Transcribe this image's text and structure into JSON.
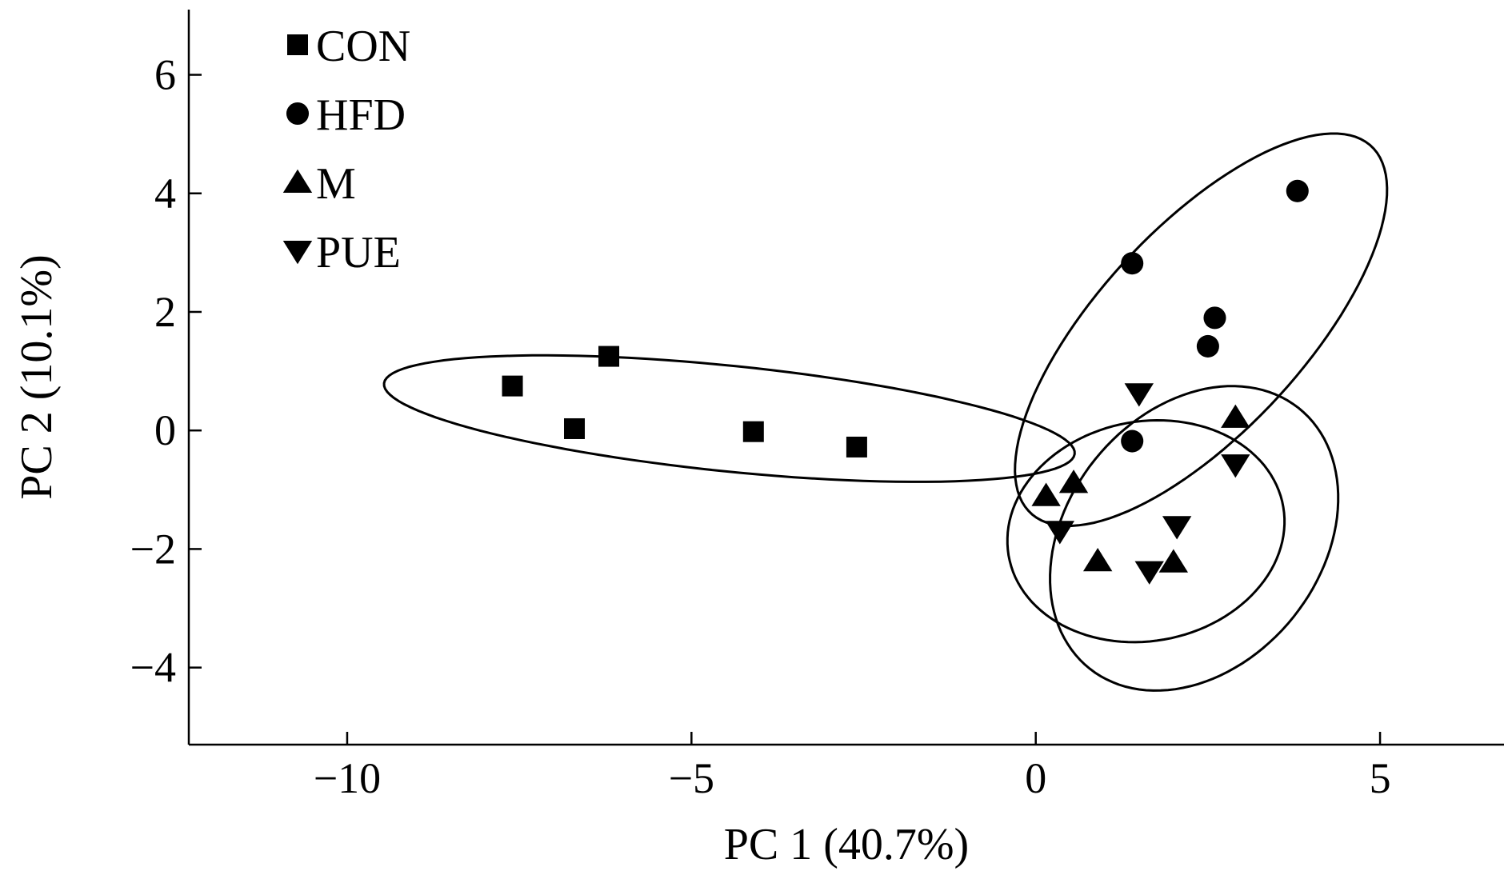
{
  "chart_data": {
    "type": "scatter",
    "xlabel": "PC 1 (40.7%)",
    "ylabel": "PC 2 (10.1%)",
    "xlim": [
      -12.3,
      6.8
    ],
    "ylim": [
      -5.3,
      7.1
    ],
    "xticks": [
      -10,
      -5,
      0,
      5
    ],
    "yticks": [
      -4,
      -2,
      0,
      2,
      4,
      6
    ],
    "xtick_labels": [
      "−10",
      "−5",
      "0",
      "5"
    ],
    "ytick_labels": [
      "−4",
      "−2",
      "0",
      "2",
      "4",
      "6"
    ],
    "grid": false,
    "legend_position": "top-left",
    "series": [
      {
        "name": "CON",
        "marker": "square",
        "points": [
          [
            -7.6,
            0.75
          ],
          [
            -6.7,
            0.03
          ],
          [
            -6.2,
            1.25
          ],
          [
            -4.1,
            -0.02
          ],
          [
            -2.6,
            -0.28
          ]
        ],
        "ellipse": {
          "cx": -4.45,
          "cy": 0.2,
          "rx": 5.05,
          "ry": 0.89,
          "angle_deg": -6.8
        }
      },
      {
        "name": "HFD",
        "marker": "circle",
        "points": [
          [
            1.4,
            2.82
          ],
          [
            2.6,
            1.9
          ],
          [
            2.5,
            1.42
          ],
          [
            3.8,
            4.04
          ],
          [
            1.4,
            -0.18
          ]
        ],
        "ellipse": {
          "cx": 2.4,
          "cy": 1.7,
          "rx": 3.97,
          "ry": 1.58,
          "angle_deg": 53
        }
      },
      {
        "name": "M",
        "marker": "triangle-up",
        "points": [
          [
            0.55,
            -0.88
          ],
          [
            0.15,
            -1.1
          ],
          [
            0.9,
            -2.2
          ],
          [
            2.0,
            -2.22
          ],
          [
            2.9,
            0.22
          ]
        ],
        "ellipse": {
          "cx": 1.6,
          "cy": -1.7,
          "rx": 2.05,
          "ry": 1.83,
          "angle_deg": 25
        }
      },
      {
        "name": "PUE",
        "marker": "triangle-down",
        "points": [
          [
            1.5,
            0.62
          ],
          [
            0.35,
            -1.7
          ],
          [
            1.65,
            -2.38
          ],
          [
            2.05,
            -1.62
          ],
          [
            2.9,
            -0.58
          ]
        ],
        "ellipse": {
          "cx": 2.3,
          "cy": -1.82,
          "rx": 2.7,
          "ry": 1.92,
          "angle_deg": 64
        }
      }
    ]
  }
}
